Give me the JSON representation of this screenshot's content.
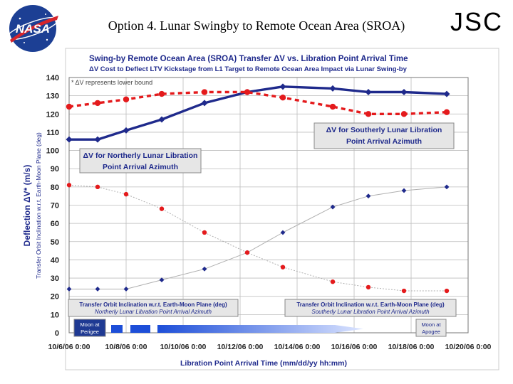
{
  "slide": {
    "title": "Option 4. Lunar Swingby to Remote Ocean Area (SROA)",
    "org_mark": "JSC",
    "logo_text": "NASA"
  },
  "chart_data": {
    "type": "line",
    "title": "Swing-by Remote Ocean Area (SROA) Transfer ΔV vs. Libration Point Arrival Time",
    "subtitle": "ΔV Cost to Deflect LTV Kickstage from L1 Target to Remote Ocean Area Impact via Lunar Swing-by",
    "xlabel": "Libration Point Arrival Time (mm/dd/yy hh:mm)",
    "ylabel": "Deflection ΔV* (m/s)",
    "ylabel2": "Transfer Orbit Inclination w.r.t. Earth-Moon Plane (deg)",
    "ylim": [
      0,
      140
    ],
    "yticks": [
      "0",
      "10",
      "20",
      "30",
      "40",
      "50",
      "60",
      "70",
      "80",
      "90",
      "100",
      "110",
      "120",
      "130",
      "140"
    ],
    "xlim": [
      0,
      14
    ],
    "xticks": [
      "10/6/06 0:00",
      "10/8/06 0:00",
      "10/10/06 0:00",
      "10/12/06 0:00",
      "10/14/06 0:00",
      "10/16/06 0:00",
      "10/18/06 0:00",
      "10/20/06 0:00"
    ],
    "grid": true,
    "footnote": "* ΔV represents lower bound",
    "colors": {
      "north": "#e41a1c",
      "south": "#1f2a8c",
      "incl_line": "#b0b0b0",
      "box_border": "#888888",
      "box_fill": "#e6e6e6"
    },
    "series": [
      {
        "name": "ΔV for Southerly Lunar Libration Point Arrival Azimuth",
        "x": [
          0,
          1,
          2,
          3.25,
          4.75,
          6.25,
          7.5,
          9.25,
          10.5,
          11.75,
          13.25
        ],
        "values": [
          106,
          106,
          111,
          117,
          126,
          132,
          135,
          134,
          132,
          132,
          131
        ]
      },
      {
        "name": "ΔV for Northerly Lunar Libration Point Arrival Azimuth",
        "x": [
          0,
          1,
          2,
          3.25,
          4.75,
          6.25,
          7.5,
          9.25,
          10.5,
          11.75,
          13.25
        ],
        "values": [
          124,
          126,
          128,
          131,
          132,
          132,
          129,
          124,
          120,
          120,
          121
        ]
      },
      {
        "name": "Southerly Lunar Libration Point Arrival Azimuth",
        "x": [
          0,
          1,
          2,
          3.25,
          4.75,
          6.25,
          7.5,
          9.25,
          10.5,
          11.75,
          13.25
        ],
        "values": [
          24,
          24,
          24,
          29,
          35,
          44,
          55,
          69,
          75,
          78,
          80
        ]
      },
      {
        "name": "Northerly Lunar Libration Point Arrival Azimuth",
        "x": [
          0,
          1,
          2,
          3.25,
          4.75,
          6.25,
          7.5,
          9.25,
          10.5,
          11.75,
          13.25
        ],
        "values": [
          81,
          80,
          76,
          68,
          55,
          44,
          36,
          28,
          25,
          23,
          23
        ]
      }
    ],
    "labels": {
      "south_dv": [
        "ΔV for Southerly Lunar Libration",
        "Point Arrival Azimuth"
      ],
      "north_dv": [
        "ΔV for Northerly Lunar Libration",
        "Point Arrival Azimuth"
      ],
      "north_incl": [
        "Transfer Orbit Inclination w.r.t. Earth-Moon Plane (deg)",
        "Northerly Lunar Libration Point Arrival Azimuth"
      ],
      "south_incl": [
        "Transfer Orbit Inclination w.r.t. Earth-Moon Plane (deg)",
        "Southerly Lunar Libration Point Arrival Azimuth"
      ],
      "perigee": [
        "Moon at",
        "Perigee"
      ],
      "apogee": [
        "Moon at",
        "Apogee"
      ]
    }
  }
}
